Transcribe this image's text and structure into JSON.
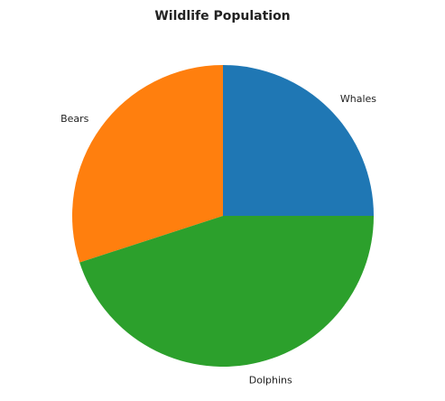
{
  "chart_data": {
    "type": "pie",
    "title": "Wildlife Population",
    "start_angle_deg": 0,
    "direction": "counterclockwise",
    "slices": [
      {
        "label": "Whales",
        "value": 25,
        "color": "#1f77b4"
      },
      {
        "label": "Bears",
        "value": 30,
        "color": "#ff7f0e"
      },
      {
        "label": "Dolphins",
        "value": 45,
        "color": "#2ca02c"
      }
    ]
  }
}
